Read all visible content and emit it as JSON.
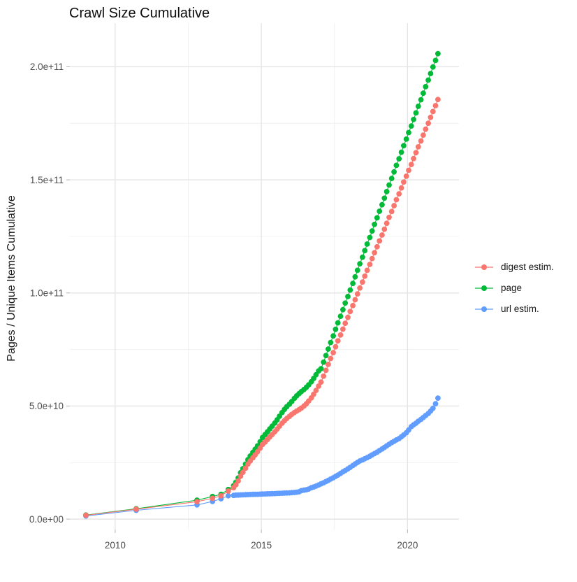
{
  "title": "Crawl Size Cumulative",
  "y_axis_title": "Pages / Unique Items Cumulative",
  "legend": {
    "items": [
      {
        "label": "digest estim.",
        "color": "#F8766D"
      },
      {
        "label": "page",
        "color": "#00BA38"
      },
      {
        "label": "url estim.",
        "color": "#619CFF"
      }
    ]
  },
  "colors": {
    "grid_major": "#E5E5E5",
    "grid_minor": "#F0F0F0",
    "tick_mark": "#B3B3B3",
    "tick_label": "#4D4D4D"
  },
  "chart_data": {
    "type": "line",
    "title": "Crawl Size Cumulative",
    "xlabel": "",
    "ylabel": "Pages / Unique Items Cumulative",
    "legend_position": "right",
    "grid": true,
    "value_unit": "values in 1e9 pages (y tick 50 = 5.0e+10)",
    "x_domain": [
      2008.45,
      2021.76
    ],
    "y_domain_e9": [
      -4.6,
      219.3
    ],
    "x_ticks": [
      {
        "v": 2010,
        "label": "2010"
      },
      {
        "v": 2015,
        "label": "2015"
      },
      {
        "v": 2020,
        "label": "2020"
      }
    ],
    "x_minor": [
      2012.5,
      2017.5
    ],
    "y_ticks": [
      {
        "v": 0,
        "label": "0.0e+00"
      },
      {
        "v": 50,
        "label": "5.0e+10"
      },
      {
        "v": 100,
        "label": "1.0e+11"
      },
      {
        "v": 150,
        "label": "1.5e+11"
      },
      {
        "v": 200,
        "label": "2.0e+11"
      }
    ],
    "y_minor": [
      25,
      75,
      125,
      175
    ],
    "series": [
      {
        "name": "digest estim.",
        "color": "#F8766D",
        "points": [
          [
            2009.0,
            1.7
          ],
          [
            2010.72,
            4.4
          ],
          [
            2012.8,
            7.7
          ],
          [
            2013.33,
            9.2
          ],
          [
            2013.62,
            10.3
          ],
          [
            2013.87,
            12.4
          ],
          [
            2014.05,
            13.9
          ],
          [
            2014.13,
            15.2
          ],
          [
            2014.21,
            16.9
          ],
          [
            2014.29,
            19.0
          ],
          [
            2014.37,
            20.7
          ],
          [
            2014.46,
            22.5
          ],
          [
            2014.54,
            24.3
          ],
          [
            2014.62,
            25.7
          ],
          [
            2014.71,
            27.1
          ],
          [
            2014.79,
            28.4
          ],
          [
            2014.87,
            29.8
          ],
          [
            2014.96,
            31.4
          ],
          [
            2015.04,
            33.0
          ],
          [
            2015.13,
            34.1
          ],
          [
            2015.21,
            35.2
          ],
          [
            2015.29,
            36.3
          ],
          [
            2015.37,
            37.4
          ],
          [
            2015.46,
            38.6
          ],
          [
            2015.54,
            39.8
          ],
          [
            2015.62,
            41.1
          ],
          [
            2015.71,
            42.4
          ],
          [
            2015.79,
            43.5
          ],
          [
            2015.87,
            44.5
          ],
          [
            2015.96,
            45.4
          ],
          [
            2016.04,
            46.3
          ],
          [
            2016.13,
            47.1
          ],
          [
            2016.21,
            47.8
          ],
          [
            2016.29,
            48.4
          ],
          [
            2016.37,
            49.1
          ],
          [
            2016.46,
            50.0
          ],
          [
            2016.54,
            51.0
          ],
          [
            2016.62,
            52.2
          ],
          [
            2016.71,
            53.6
          ],
          [
            2016.79,
            55.2
          ],
          [
            2016.87,
            56.9
          ],
          [
            2016.96,
            58.8
          ],
          [
            2017.04,
            60.6
          ],
          [
            2017.13,
            63.2
          ],
          [
            2017.21,
            65.8
          ],
          [
            2017.29,
            68.4
          ],
          [
            2017.37,
            71.0
          ],
          [
            2017.46,
            73.6
          ],
          [
            2017.54,
            76.2
          ],
          [
            2017.62,
            78.8
          ],
          [
            2017.71,
            81.4
          ],
          [
            2017.79,
            84.0
          ],
          [
            2017.87,
            86.6
          ],
          [
            2017.96,
            89.2
          ],
          [
            2018.04,
            91.8
          ],
          [
            2018.13,
            94.4
          ],
          [
            2018.21,
            97.0
          ],
          [
            2018.29,
            99.6
          ],
          [
            2018.37,
            102.2
          ],
          [
            2018.46,
            104.8
          ],
          [
            2018.54,
            107.4
          ],
          [
            2018.62,
            110.0
          ],
          [
            2018.71,
            112.6
          ],
          [
            2018.79,
            115.2
          ],
          [
            2018.87,
            117.8
          ],
          [
            2018.96,
            120.4
          ],
          [
            2019.04,
            123.0
          ],
          [
            2019.13,
            125.6
          ],
          [
            2019.21,
            128.2
          ],
          [
            2019.29,
            130.8
          ],
          [
            2019.37,
            133.4
          ],
          [
            2019.46,
            136.0
          ],
          [
            2019.54,
            138.6
          ],
          [
            2019.62,
            141.2
          ],
          [
            2019.71,
            143.8
          ],
          [
            2019.79,
            146.4
          ],
          [
            2019.87,
            149.0
          ],
          [
            2019.96,
            151.6
          ],
          [
            2020.04,
            154.2
          ],
          [
            2020.13,
            156.8
          ],
          [
            2020.21,
            159.4
          ],
          [
            2020.29,
            162.0
          ],
          [
            2020.37,
            164.6
          ],
          [
            2020.46,
            167.2
          ],
          [
            2020.54,
            169.8
          ],
          [
            2020.62,
            172.4
          ],
          [
            2020.71,
            175.0
          ],
          [
            2020.79,
            177.6
          ],
          [
            2020.87,
            180.2
          ],
          [
            2020.96,
            182.8
          ],
          [
            2021.04,
            185.5
          ]
        ]
      },
      {
        "name": "page",
        "color": "#00BA38",
        "points": [
          [
            2009.0,
            1.8
          ],
          [
            2010.72,
            4.6
          ],
          [
            2012.8,
            8.4
          ],
          [
            2013.33,
            10.0
          ],
          [
            2013.62,
            11.0
          ],
          [
            2013.87,
            13.1
          ],
          [
            2014.05,
            14.8
          ],
          [
            2014.13,
            16.3
          ],
          [
            2014.21,
            18.2
          ],
          [
            2014.29,
            20.5
          ],
          [
            2014.37,
            22.3
          ],
          [
            2014.46,
            24.3
          ],
          [
            2014.54,
            26.3
          ],
          [
            2014.62,
            27.9
          ],
          [
            2014.71,
            29.5
          ],
          [
            2014.79,
            30.9
          ],
          [
            2014.87,
            32.4
          ],
          [
            2014.96,
            34.2
          ],
          [
            2015.04,
            36.1
          ],
          [
            2015.13,
            37.4
          ],
          [
            2015.21,
            38.6
          ],
          [
            2015.29,
            39.9
          ],
          [
            2015.37,
            41.1
          ],
          [
            2015.46,
            42.5
          ],
          [
            2015.54,
            43.9
          ],
          [
            2015.62,
            45.5
          ],
          [
            2015.71,
            47.1
          ],
          [
            2015.79,
            48.5
          ],
          [
            2015.87,
            49.7
          ],
          [
            2015.96,
            50.8
          ],
          [
            2016.04,
            52.0
          ],
          [
            2016.13,
            53.4
          ],
          [
            2016.21,
            54.5
          ],
          [
            2016.29,
            55.5
          ],
          [
            2016.37,
            56.4
          ],
          [
            2016.46,
            57.3
          ],
          [
            2016.54,
            58.3
          ],
          [
            2016.62,
            59.4
          ],
          [
            2016.71,
            60.7
          ],
          [
            2016.79,
            62.2
          ],
          [
            2016.87,
            63.8
          ],
          [
            2016.96,
            65.5
          ],
          [
            2017.04,
            66.5
          ],
          [
            2017.13,
            69.4
          ],
          [
            2017.21,
            72.3
          ],
          [
            2017.29,
            75.2
          ],
          [
            2017.37,
            78.1
          ],
          [
            2017.46,
            81.0
          ],
          [
            2017.54,
            83.9
          ],
          [
            2017.62,
            86.8
          ],
          [
            2017.71,
            89.7
          ],
          [
            2017.79,
            92.6
          ],
          [
            2017.87,
            95.5
          ],
          [
            2017.96,
            98.4
          ],
          [
            2018.04,
            101.3
          ],
          [
            2018.13,
            104.2
          ],
          [
            2018.21,
            107.1
          ],
          [
            2018.29,
            110.0
          ],
          [
            2018.37,
            112.9
          ],
          [
            2018.46,
            115.8
          ],
          [
            2018.54,
            118.7
          ],
          [
            2018.62,
            121.6
          ],
          [
            2018.71,
            124.5
          ],
          [
            2018.79,
            127.4
          ],
          [
            2018.87,
            130.3
          ],
          [
            2018.96,
            133.2
          ],
          [
            2019.04,
            136.1
          ],
          [
            2019.13,
            139.0
          ],
          [
            2019.21,
            141.9
          ],
          [
            2019.29,
            144.8
          ],
          [
            2019.37,
            147.7
          ],
          [
            2019.46,
            150.6
          ],
          [
            2019.54,
            153.5
          ],
          [
            2019.62,
            156.4
          ],
          [
            2019.71,
            159.3
          ],
          [
            2019.79,
            162.2
          ],
          [
            2019.87,
            165.1
          ],
          [
            2019.96,
            168.0
          ],
          [
            2020.04,
            170.9
          ],
          [
            2020.13,
            173.8
          ],
          [
            2020.21,
            176.7
          ],
          [
            2020.29,
            179.6
          ],
          [
            2020.37,
            182.5
          ],
          [
            2020.46,
            185.4
          ],
          [
            2020.54,
            188.3
          ],
          [
            2020.62,
            191.2
          ],
          [
            2020.71,
            194.1
          ],
          [
            2020.79,
            197.0
          ],
          [
            2020.87,
            199.9
          ],
          [
            2020.96,
            202.8
          ],
          [
            2021.04,
            205.8
          ]
        ]
      },
      {
        "name": "url estim.",
        "color": "#619CFF",
        "points": [
          [
            2009.0,
            1.4
          ],
          [
            2010.72,
            3.9
          ],
          [
            2012.8,
            6.3
          ],
          [
            2013.33,
            7.8
          ],
          [
            2013.62,
            9.0
          ],
          [
            2013.87,
            10.3
          ],
          [
            2014.05,
            10.5
          ],
          [
            2014.13,
            10.6
          ],
          [
            2014.21,
            10.65
          ],
          [
            2014.29,
            10.7
          ],
          [
            2014.37,
            10.75
          ],
          [
            2014.46,
            10.8
          ],
          [
            2014.54,
            10.85
          ],
          [
            2014.62,
            10.9
          ],
          [
            2014.71,
            10.95
          ],
          [
            2014.79,
            11.0
          ],
          [
            2014.87,
            11.0
          ],
          [
            2014.96,
            11.05
          ],
          [
            2015.04,
            11.1
          ],
          [
            2015.13,
            11.15
          ],
          [
            2015.21,
            11.2
          ],
          [
            2015.29,
            11.2
          ],
          [
            2015.37,
            11.25
          ],
          [
            2015.46,
            11.3
          ],
          [
            2015.54,
            11.35
          ],
          [
            2015.62,
            11.4
          ],
          [
            2015.71,
            11.45
          ],
          [
            2015.79,
            11.5
          ],
          [
            2015.87,
            11.55
          ],
          [
            2015.96,
            11.6
          ],
          [
            2016.04,
            11.7
          ],
          [
            2016.13,
            11.8
          ],
          [
            2016.21,
            11.9
          ],
          [
            2016.29,
            12.1
          ],
          [
            2016.37,
            12.6
          ],
          [
            2016.46,
            12.8
          ],
          [
            2016.54,
            13.0
          ],
          [
            2016.62,
            13.3
          ],
          [
            2016.71,
            13.9
          ],
          [
            2016.79,
            14.2
          ],
          [
            2016.87,
            14.6
          ],
          [
            2016.96,
            15.1
          ],
          [
            2017.04,
            15.6
          ],
          [
            2017.13,
            16.1
          ],
          [
            2017.21,
            16.6
          ],
          [
            2017.29,
            17.1
          ],
          [
            2017.37,
            17.7
          ],
          [
            2017.46,
            18.3
          ],
          [
            2017.54,
            18.9
          ],
          [
            2017.62,
            19.5
          ],
          [
            2017.71,
            20.2
          ],
          [
            2017.79,
            20.9
          ],
          [
            2017.87,
            21.5
          ],
          [
            2017.96,
            22.2
          ],
          [
            2018.04,
            22.9
          ],
          [
            2018.13,
            23.7
          ],
          [
            2018.21,
            24.4
          ],
          [
            2018.29,
            25.1
          ],
          [
            2018.37,
            25.7
          ],
          [
            2018.46,
            26.2
          ],
          [
            2018.54,
            26.7
          ],
          [
            2018.62,
            27.2
          ],
          [
            2018.71,
            27.8
          ],
          [
            2018.79,
            28.4
          ],
          [
            2018.87,
            29.0
          ],
          [
            2018.96,
            29.6
          ],
          [
            2019.04,
            30.3
          ],
          [
            2019.13,
            31.0
          ],
          [
            2019.21,
            31.7
          ],
          [
            2019.29,
            32.4
          ],
          [
            2019.37,
            33.1
          ],
          [
            2019.46,
            33.8
          ],
          [
            2019.54,
            34.4
          ],
          [
            2019.62,
            35.0
          ],
          [
            2019.71,
            35.6
          ],
          [
            2019.79,
            36.4
          ],
          [
            2019.87,
            37.2
          ],
          [
            2019.96,
            38.2
          ],
          [
            2020.04,
            39.4
          ],
          [
            2020.13,
            40.9
          ],
          [
            2020.21,
            41.7
          ],
          [
            2020.29,
            42.4
          ],
          [
            2020.37,
            43.3
          ],
          [
            2020.46,
            44.1
          ],
          [
            2020.54,
            44.9
          ],
          [
            2020.62,
            45.8
          ],
          [
            2020.71,
            46.7
          ],
          [
            2020.79,
            47.8
          ],
          [
            2020.87,
            49.0
          ],
          [
            2020.96,
            51.0
          ],
          [
            2021.04,
            53.5
          ]
        ]
      }
    ]
  }
}
